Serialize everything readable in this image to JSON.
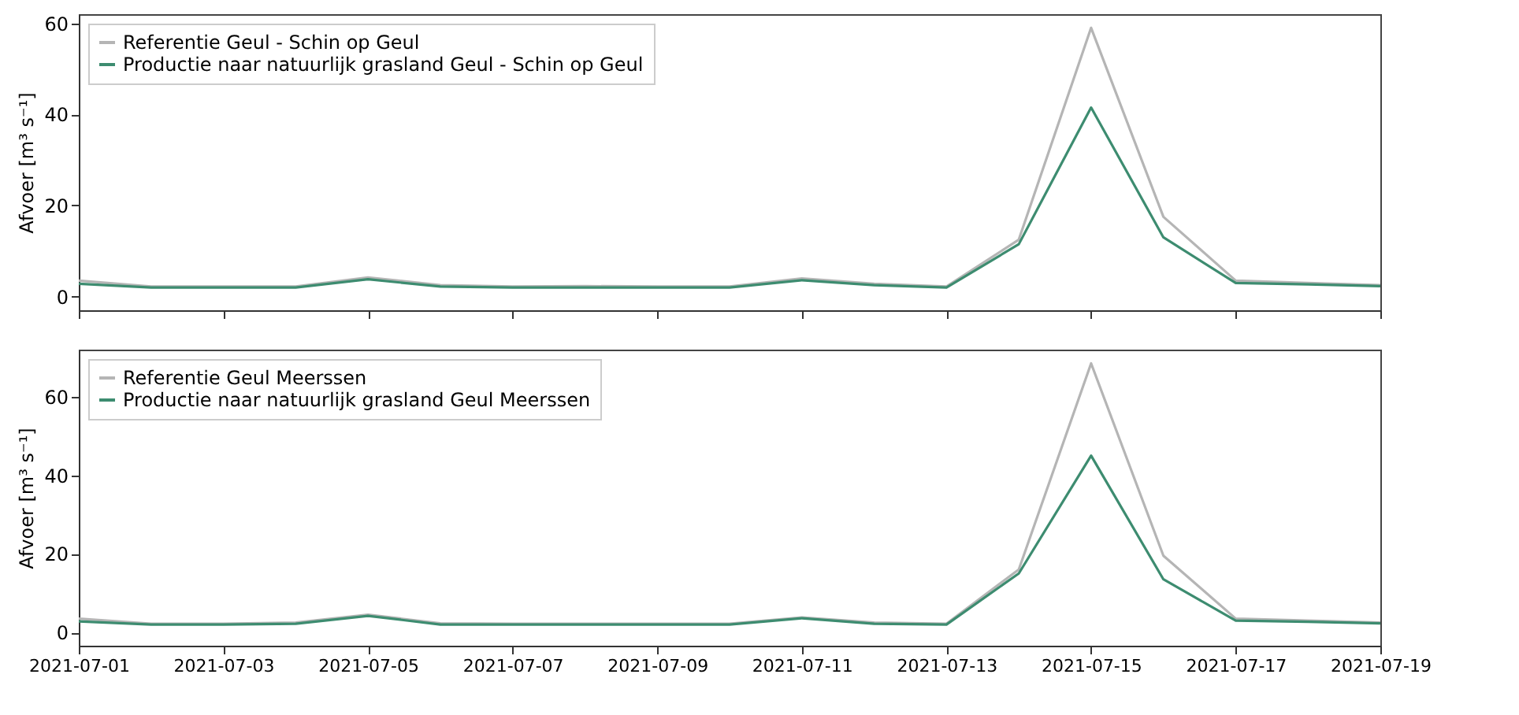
{
  "chart_data": [
    {
      "type": "line",
      "ylabel": "Afvoer [m³ s⁻¹]",
      "x": [
        "2021-07-01",
        "2021-07-02",
        "2021-07-03",
        "2021-07-04",
        "2021-07-05",
        "2021-07-06",
        "2021-07-07",
        "2021-07-08",
        "2021-07-09",
        "2021-07-10",
        "2021-07-11",
        "2021-07-12",
        "2021-07-13",
        "2021-07-14",
        "2021-07-15",
        "2021-07-16",
        "2021-07-17",
        "2021-07-18",
        "2021-07-19"
      ],
      "series": [
        {
          "name": "Referentie Geul - Schin op Geul",
          "color": "#b5b5b5",
          "values": [
            3.5,
            2.2,
            2.2,
            2.2,
            4.2,
            2.5,
            2.2,
            2.3,
            2.2,
            2.2,
            4.0,
            2.8,
            2.2,
            12.5,
            59,
            17.5,
            3.5,
            3.0,
            2.5
          ]
        },
        {
          "name": "Productie naar natuurlijk grasland Geul - Schin op Geul",
          "color": "#3d8c70",
          "values": [
            2.8,
            2.0,
            2.0,
            2.0,
            3.8,
            2.2,
            2.0,
            2.0,
            2.0,
            2.0,
            3.6,
            2.5,
            2.0,
            11.5,
            41.5,
            13,
            3.0,
            2.7,
            2.3
          ]
        }
      ],
      "xlim": [
        "2021-07-01",
        "2021-07-19"
      ],
      "xticks": [
        "2021-07-01",
        "2021-07-03",
        "2021-07-05",
        "2021-07-07",
        "2021-07-09",
        "2021-07-11",
        "2021-07-13",
        "2021-07-15",
        "2021-07-17",
        "2021-07-19"
      ],
      "ylim": [
        -3,
        62
      ],
      "yticks": [
        0,
        20,
        40,
        60
      ],
      "tick_labels": "y",
      "grid": false,
      "legend": "top left"
    },
    {
      "type": "line",
      "ylabel": "Afvoer [m³ s⁻¹]",
      "x": [
        "2021-07-01",
        "2021-07-02",
        "2021-07-03",
        "2021-07-04",
        "2021-07-05",
        "2021-07-06",
        "2021-07-07",
        "2021-07-08",
        "2021-07-09",
        "2021-07-10",
        "2021-07-11",
        "2021-07-12",
        "2021-07-13",
        "2021-07-14",
        "2021-07-15",
        "2021-07-16",
        "2021-07-17",
        "2021-07-18",
        "2021-07-19"
      ],
      "series": [
        {
          "name": "Referentie Geul Meerssen",
          "color": "#b5b5b5",
          "values": [
            3.5,
            2.2,
            2.2,
            2.5,
            4.5,
            2.3,
            2.2,
            2.2,
            2.2,
            2.2,
            3.8,
            2.5,
            2.2,
            16,
            68.5,
            19.5,
            3.5,
            3.0,
            2.5
          ]
        },
        {
          "name": "Productie naar natuurlijk grasland Geul Meerssen",
          "color": "#3d8c70",
          "values": [
            2.8,
            2.0,
            2.0,
            2.2,
            4.2,
            2.0,
            2.0,
            2.0,
            2.0,
            2.0,
            3.6,
            2.2,
            2.0,
            15,
            45,
            13.5,
            3.0,
            2.7,
            2.3
          ]
        }
      ],
      "xlim": [
        "2021-07-01",
        "2021-07-19"
      ],
      "xticks": [
        "2021-07-01",
        "2021-07-03",
        "2021-07-05",
        "2021-07-07",
        "2021-07-09",
        "2021-07-11",
        "2021-07-13",
        "2021-07-15",
        "2021-07-17",
        "2021-07-19"
      ],
      "ylim": [
        -3.4,
        72
      ],
      "yticks": [
        0,
        20,
        40,
        60
      ],
      "grid": false,
      "legend": "top left"
    }
  ]
}
